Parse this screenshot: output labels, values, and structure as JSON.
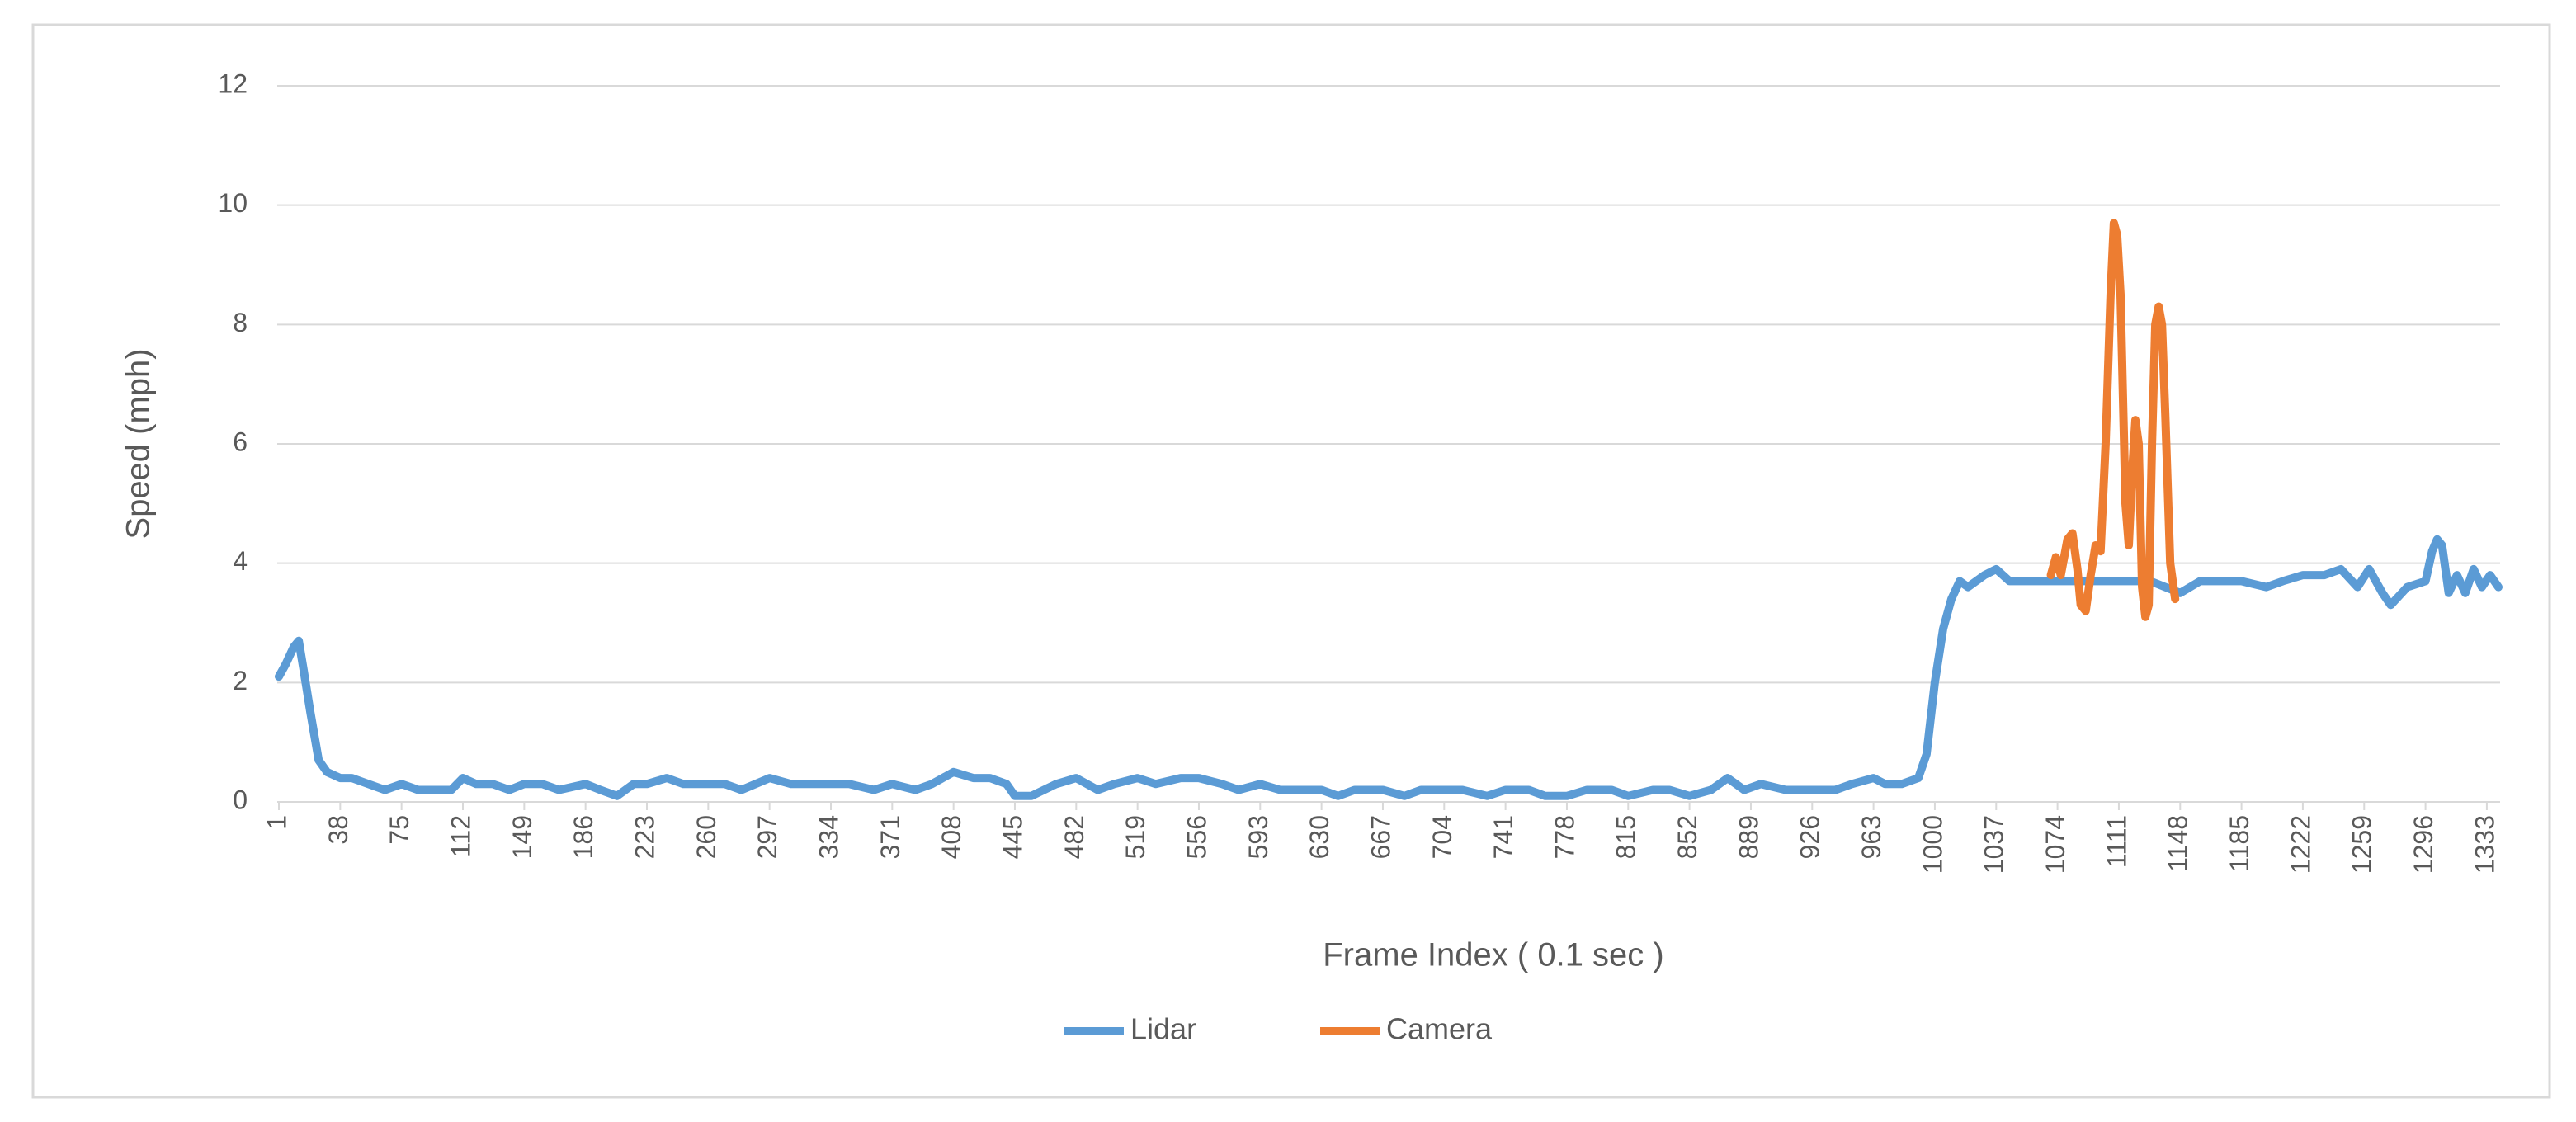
{
  "chart_data": {
    "type": "line",
    "x_label": "Frame Index ( 0.1 sec )",
    "y_label": "Speed (mph)",
    "xlim": [
      0,
      1341
    ],
    "ylim": [
      0,
      12
    ],
    "yticks": [
      0,
      2,
      4,
      6,
      8,
      10,
      12
    ],
    "xticks": [
      1,
      38,
      75,
      112,
      149,
      186,
      223,
      260,
      297,
      334,
      371,
      408,
      445,
      482,
      519,
      556,
      593,
      630,
      667,
      704,
      741,
      778,
      815,
      852,
      889,
      926,
      963,
      1000,
      1037,
      1074,
      1111,
      1148,
      1185,
      1222,
      1259,
      1296,
      1333
    ],
    "grid": true,
    "legend": "bottom",
    "series": [
      {
        "name": "Lidar",
        "color": "#5b9bd5",
        "x": [
          1,
          5,
          10,
          13,
          16,
          20,
          25,
          30,
          38,
          45,
          55,
          65,
          75,
          85,
          95,
          105,
          112,
          120,
          130,
          140,
          149,
          160,
          170,
          186,
          195,
          205,
          215,
          223,
          235,
          245,
          260,
          270,
          280,
          297,
          310,
          320,
          334,
          345,
          360,
          371,
          385,
          395,
          408,
          420,
          430,
          440,
          445,
          455,
          470,
          482,
          495,
          505,
          519,
          530,
          545,
          556,
          570,
          580,
          593,
          605,
          620,
          630,
          640,
          650,
          667,
          680,
          690,
          704,
          715,
          730,
          741,
          755,
          765,
          778,
          790,
          805,
          815,
          830,
          840,
          852,
          865,
          875,
          885,
          895,
          910,
          926,
          940,
          950,
          963,
          970,
          980,
          990,
          995,
          1000,
          1005,
          1010,
          1015,
          1020,
          1030,
          1037,
          1045,
          1060,
          1074,
          1090,
          1111,
          1130,
          1148,
          1160,
          1170,
          1185,
          1200,
          1210,
          1222,
          1235,
          1245,
          1255,
          1262,
          1270,
          1275,
          1285,
          1296,
          1300,
          1303,
          1306,
          1310,
          1315,
          1320,
          1325,
          1330,
          1335,
          1340
        ],
        "values": [
          2.1,
          2.3,
          2.6,
          2.7,
          2.2,
          1.5,
          0.7,
          0.5,
          0.4,
          0.4,
          0.3,
          0.2,
          0.3,
          0.2,
          0.2,
          0.2,
          0.4,
          0.3,
          0.3,
          0.2,
          0.3,
          0.3,
          0.2,
          0.3,
          0.2,
          0.1,
          0.3,
          0.3,
          0.4,
          0.3,
          0.3,
          0.3,
          0.2,
          0.4,
          0.3,
          0.3,
          0.3,
          0.3,
          0.2,
          0.3,
          0.2,
          0.3,
          0.5,
          0.4,
          0.4,
          0.3,
          0.1,
          0.1,
          0.3,
          0.4,
          0.2,
          0.3,
          0.4,
          0.3,
          0.4,
          0.4,
          0.3,
          0.2,
          0.3,
          0.2,
          0.2,
          0.2,
          0.1,
          0.2,
          0.2,
          0.1,
          0.2,
          0.2,
          0.2,
          0.1,
          0.2,
          0.2,
          0.1,
          0.1,
          0.2,
          0.2,
          0.1,
          0.2,
          0.2,
          0.1,
          0.2,
          0.4,
          0.2,
          0.3,
          0.2,
          0.2,
          0.2,
          0.3,
          0.4,
          0.3,
          0.3,
          0.4,
          0.8,
          2.0,
          2.9,
          3.4,
          3.7,
          3.6,
          3.8,
          3.9,
          3.7,
          3.7,
          3.7,
          3.7,
          3.7,
          3.7,
          3.5,
          3.7,
          3.7,
          3.7,
          3.6,
          3.7,
          3.8,
          3.8,
          3.9,
          3.6,
          3.9,
          3.5,
          3.3,
          3.6,
          3.7,
          4.2,
          4.4,
          4.3,
          3.5,
          3.8,
          3.5,
          3.9,
          3.6,
          3.8,
          3.6
        ]
      },
      {
        "name": "Camera",
        "color": "#ed7d31",
        "x": [
          1070,
          1073,
          1076,
          1080,
          1083,
          1086,
          1088,
          1091,
          1094,
          1097,
          1100,
          1103,
          1106,
          1108,
          1110,
          1112,
          1115,
          1117,
          1119,
          1121,
          1123,
          1125,
          1127,
          1129,
          1131,
          1133,
          1135,
          1137,
          1139,
          1142,
          1145
        ],
        "values": [
          3.8,
          4.1,
          3.8,
          4.4,
          4.5,
          3.9,
          3.3,
          3.2,
          3.8,
          4.3,
          4.2,
          6.0,
          8.5,
          9.7,
          9.5,
          8.5,
          5.0,
          4.3,
          5.5,
          6.4,
          6.0,
          3.6,
          3.1,
          3.3,
          6.0,
          8.0,
          8.3,
          8.0,
          6.5,
          4.0,
          3.4
        ]
      }
    ]
  }
}
